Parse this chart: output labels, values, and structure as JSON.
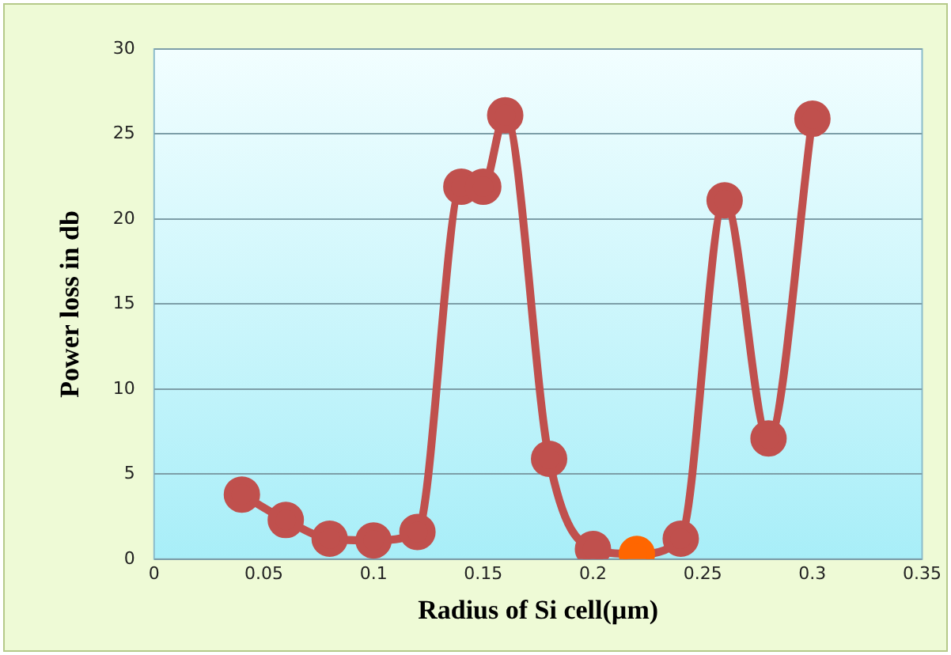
{
  "chart_data": {
    "type": "line",
    "xlabel": "Radius of Si cell(µm)",
    "ylabel": "Power loss in db",
    "x": [
      0.04,
      0.06,
      0.08,
      0.1,
      0.12,
      0.14,
      0.15,
      0.16,
      0.18,
      0.2,
      0.22,
      0.24,
      0.26,
      0.28,
      0.3
    ],
    "series": [
      {
        "color": "#c0504d",
        "colors": [
          "#c0504d",
          "#c0504d",
          "#c0504d",
          "#c0504d",
          "#c0504d",
          "#c0504d",
          "#c0504d",
          "#c0504d",
          "#c0504d",
          "#c0504d",
          "#ff6600",
          "#c0504d",
          "#c0504d",
          "#c0504d",
          "#c0504d"
        ],
        "values": [
          3.8,
          2.3,
          1.2,
          1.1,
          1.6,
          21.9,
          21.9,
          26.1,
          5.9,
          0.6,
          0.3,
          1.2,
          21.1,
          7.1,
          25.9
        ]
      }
    ],
    "xlim": [
      0,
      0.35
    ],
    "xticks": [
      0,
      0.05,
      0.1,
      0.15,
      0.2,
      0.25,
      0.3,
      0.35
    ],
    "ylim": [
      0,
      30
    ],
    "yticks": [
      0,
      5,
      10,
      15,
      20,
      25,
      30
    ],
    "grid": "y",
    "legend": false,
    "marker": "circle",
    "line_style": "solid"
  }
}
